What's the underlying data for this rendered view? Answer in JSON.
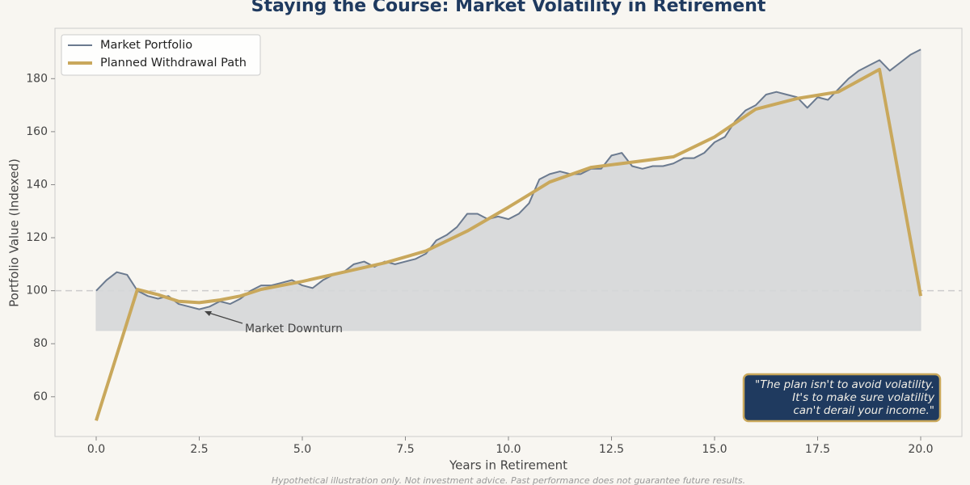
{
  "chart_data": {
    "type": "line",
    "title": "Staying the Course: Market Volatility in Retirement",
    "xlabel": "Years in Retirement",
    "ylabel": "Portfolio Value (Indexed)",
    "footnote": "Hypothetical illustration only. Not investment advice. Past performance does not guarantee future results.",
    "annotation": "Market Downturn",
    "quote": [
      "\"The plan isn't to avoid volatility.",
      "It's to make sure volatility",
      "can't derail your income.\""
    ],
    "xlim": [
      -1,
      21
    ],
    "ylim": [
      45,
      199
    ],
    "xticks": [
      {
        "value": 0,
        "label": "0.0"
      },
      {
        "value": 2.5,
        "label": "2.5"
      },
      {
        "value": 5,
        "label": "5.0"
      },
      {
        "value": 7.5,
        "label": "7.5"
      },
      {
        "value": 10,
        "label": "10.0"
      },
      {
        "value": 12.5,
        "label": "12.5"
      },
      {
        "value": 15,
        "label": "15.0"
      },
      {
        "value": 17.5,
        "label": "17.5"
      },
      {
        "value": 20,
        "label": "20.0"
      }
    ],
    "yticks": [
      60,
      80,
      100,
      120,
      140,
      160,
      180
    ],
    "reference_line": 100,
    "fill_to": 85,
    "fill_color": "#d5d7d8",
    "legend": "upper left",
    "series": [
      {
        "name": "Market Portfolio",
        "color": "#6b7a8f",
        "width": 2,
        "fill": true,
        "x": [
          0,
          0.25,
          0.5,
          0.75,
          1,
          1.25,
          1.5,
          1.75,
          2,
          2.25,
          2.5,
          2.75,
          3,
          3.25,
          3.5,
          3.75,
          4,
          4.25,
          4.5,
          4.75,
          5,
          5.25,
          5.5,
          5.75,
          6,
          6.25,
          6.5,
          6.75,
          7,
          7.25,
          7.5,
          7.75,
          8,
          8.25,
          8.5,
          8.75,
          9,
          9.25,
          9.5,
          9.75,
          10,
          10.25,
          10.5,
          10.75,
          11,
          11.25,
          11.5,
          11.75,
          12,
          12.25,
          12.5,
          12.75,
          13,
          13.25,
          13.5,
          13.75,
          14,
          14.25,
          14.5,
          14.75,
          15,
          15.25,
          15.5,
          15.75,
          16,
          16.25,
          16.5,
          16.75,
          17,
          17.25,
          17.5,
          17.75,
          18,
          18.25,
          18.5,
          18.75,
          19,
          19.25,
          19.5,
          19.75,
          20
        ],
        "values": [
          100,
          104,
          107,
          106,
          100,
          98,
          97,
          98,
          95,
          94,
          93,
          94,
          96,
          95,
          97,
          100,
          102,
          102,
          103,
          104,
          102,
          101,
          104,
          106,
          107,
          110,
          111,
          109,
          111,
          110,
          111,
          112,
          114,
          119,
          121,
          124,
          129,
          129,
          127,
          128,
          127,
          129,
          133,
          142,
          144,
          145,
          144,
          144,
          146,
          146,
          151,
          152,
          147,
          146,
          147,
          147,
          148,
          150,
          150,
          152,
          156,
          158,
          164,
          168,
          170,
          174,
          175,
          174,
          173,
          169,
          173,
          172,
          176,
          180,
          183,
          185,
          187,
          183,
          186,
          189,
          191
        ]
      },
      {
        "name": "Planned Withdrawal Path",
        "color": "#c9a85c",
        "width": 4,
        "fill": false,
        "x": [
          0,
          1,
          1.5,
          2,
          2.5,
          3,
          3.5,
          4,
          5,
          6,
          7,
          8,
          9,
          10,
          11,
          12,
          13,
          14,
          15,
          16,
          17,
          18,
          19,
          20
        ],
        "values": [
          51,
          100.5,
          98.5,
          96,
          95.5,
          96.5,
          98,
          100.5,
          103.5,
          107,
          110.5,
          115,
          122.5,
          131.5,
          141,
          146.5,
          148.5,
          150.5,
          158,
          168.5,
          172.5,
          175,
          183.5,
          98
        ]
      }
    ]
  }
}
